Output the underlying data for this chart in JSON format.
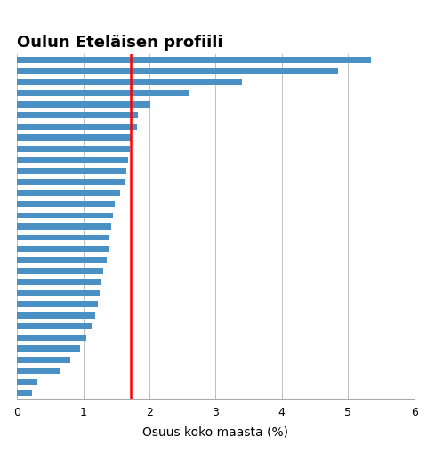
{
  "title": "Oulun Eteläisen profiili",
  "xlabel": "Osuus koko maasta (%)",
  "bar_color": "#4a90c4",
  "redline_x": 1.72,
  "xlim": [
    0,
    6
  ],
  "xticks": [
    0,
    1,
    2,
    3,
    4,
    5,
    6
  ],
  "values": [
    5.35,
    4.85,
    3.4,
    2.6,
    2.02,
    1.83,
    1.81,
    1.72,
    1.7,
    1.68,
    1.65,
    1.62,
    1.55,
    1.48,
    1.45,
    1.42,
    1.4,
    1.38,
    1.35,
    1.3,
    1.27,
    1.25,
    1.22,
    1.18,
    1.12,
    1.05,
    0.95,
    0.8,
    0.65,
    0.3,
    0.22
  ],
  "grid_color": "#c0c0c0",
  "background_color": "#ffffff",
  "bar_height": 0.55,
  "title_fontsize": 13,
  "xlabel_fontsize": 10,
  "xtick_fontsize": 9
}
